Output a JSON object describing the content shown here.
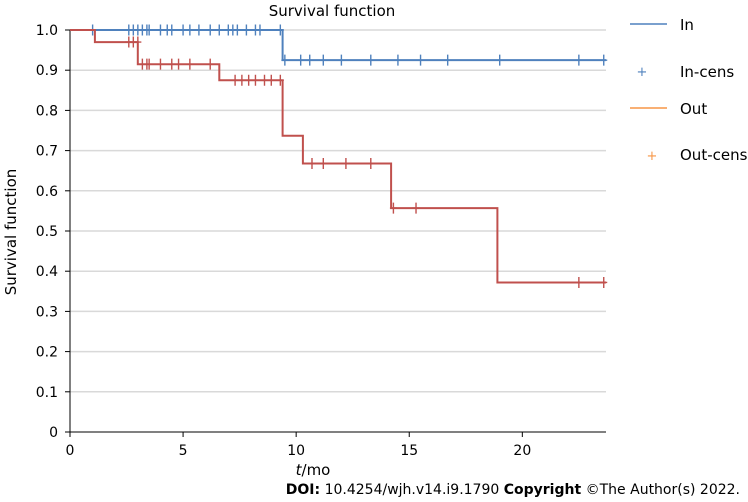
{
  "chart_data": {
    "type": "line",
    "title": "Survival function",
    "xlabel_italic": "t",
    "xlabel_rest": "/mo",
    "ylabel": "Survival function",
    "xlim": [
      0,
      23.7
    ],
    "ylim": [
      0,
      1.0
    ],
    "x_ticks": [
      0,
      5,
      10,
      15,
      20
    ],
    "y_ticks": [
      0,
      0.1,
      0.2,
      0.3,
      0.4,
      0.5,
      0.6,
      0.7,
      0.8,
      0.9,
      1.0
    ],
    "y_tick_labels": [
      "0",
      "0.1",
      "0.2",
      "0.3",
      "0.4",
      "0.5",
      "0.6",
      "0.7",
      "0.8",
      "0.9",
      "1.0"
    ],
    "grid": true,
    "legend_position": "right",
    "series": [
      {
        "name": "In",
        "color": "#4f81bd",
        "steps": [
          [
            0,
            1.0
          ],
          [
            9.4,
            1.0
          ],
          [
            9.4,
            0.925
          ],
          [
            23.7,
            0.925
          ]
        ],
        "censored_name": "In-cens",
        "censored": [
          [
            1.0,
            1.0
          ],
          [
            2.6,
            1.0
          ],
          [
            2.8,
            1.0
          ],
          [
            3.0,
            1.0
          ],
          [
            3.2,
            1.0
          ],
          [
            3.4,
            1.0
          ],
          [
            3.5,
            1.0
          ],
          [
            4.0,
            1.0
          ],
          [
            4.3,
            1.0
          ],
          [
            4.5,
            1.0
          ],
          [
            5.0,
            1.0
          ],
          [
            5.3,
            1.0
          ],
          [
            5.7,
            1.0
          ],
          [
            6.2,
            1.0
          ],
          [
            6.6,
            1.0
          ],
          [
            7.0,
            1.0
          ],
          [
            7.2,
            1.0
          ],
          [
            7.4,
            1.0
          ],
          [
            7.8,
            1.0
          ],
          [
            8.2,
            1.0
          ],
          [
            8.4,
            1.0
          ],
          [
            9.3,
            1.0
          ],
          [
            9.5,
            0.925
          ],
          [
            10.2,
            0.925
          ],
          [
            10.6,
            0.925
          ],
          [
            11.2,
            0.925
          ],
          [
            12.0,
            0.925
          ],
          [
            13.3,
            0.925
          ],
          [
            14.5,
            0.925
          ],
          [
            15.5,
            0.925
          ],
          [
            16.7,
            0.925
          ],
          [
            19.0,
            0.925
          ],
          [
            22.5,
            0.925
          ],
          [
            23.6,
            0.925
          ]
        ]
      },
      {
        "name": "Out",
        "color": "#c0504d",
        "steps": [
          [
            0,
            1.0
          ],
          [
            1.1,
            1.0
          ],
          [
            1.1,
            0.97
          ],
          [
            3.0,
            0.97
          ],
          [
            3.0,
            0.915
          ],
          [
            6.6,
            0.915
          ],
          [
            6.6,
            0.875
          ],
          [
            9.4,
            0.875
          ],
          [
            9.4,
            0.737
          ],
          [
            10.3,
            0.737
          ],
          [
            10.3,
            0.668
          ],
          [
            14.2,
            0.668
          ],
          [
            14.2,
            0.557
          ],
          [
            18.9,
            0.557
          ],
          [
            18.9,
            0.372
          ],
          [
            23.7,
            0.372
          ]
        ],
        "censored_name": "Out-cens",
        "censored": [
          [
            2.6,
            0.97
          ],
          [
            2.8,
            0.97
          ],
          [
            3.0,
            0.97
          ],
          [
            3.2,
            0.915
          ],
          [
            3.4,
            0.915
          ],
          [
            3.5,
            0.915
          ],
          [
            4.0,
            0.915
          ],
          [
            4.5,
            0.915
          ],
          [
            4.8,
            0.915
          ],
          [
            5.3,
            0.915
          ],
          [
            6.2,
            0.915
          ],
          [
            7.3,
            0.875
          ],
          [
            7.6,
            0.875
          ],
          [
            7.9,
            0.875
          ],
          [
            8.2,
            0.875
          ],
          [
            8.6,
            0.875
          ],
          [
            8.9,
            0.875
          ],
          [
            9.3,
            0.875
          ],
          [
            10.7,
            0.668
          ],
          [
            11.2,
            0.668
          ],
          [
            12.2,
            0.668
          ],
          [
            13.3,
            0.668
          ],
          [
            14.3,
            0.557
          ],
          [
            15.3,
            0.557
          ],
          [
            22.5,
            0.372
          ],
          [
            23.6,
            0.372
          ]
        ]
      }
    ],
    "legend": [
      {
        "label": "In",
        "kind": "line",
        "color": "#4f81bd"
      },
      {
        "label": "In-cens",
        "kind": "marker",
        "color": "#4f81bd"
      },
      {
        "label": "Out",
        "kind": "line",
        "color": "#f79646"
      },
      {
        "label": "Out-cens",
        "kind": "marker",
        "color": "#f79646"
      }
    ],
    "grid_color": "#d9d9d9"
  },
  "footer": {
    "doi_label": "DOI:",
    "doi_value": "10.4254/wjh.v14.i9.1790",
    "copyright_label": "Copyright",
    "copyright_value": "©The Author(s) 2022."
  }
}
